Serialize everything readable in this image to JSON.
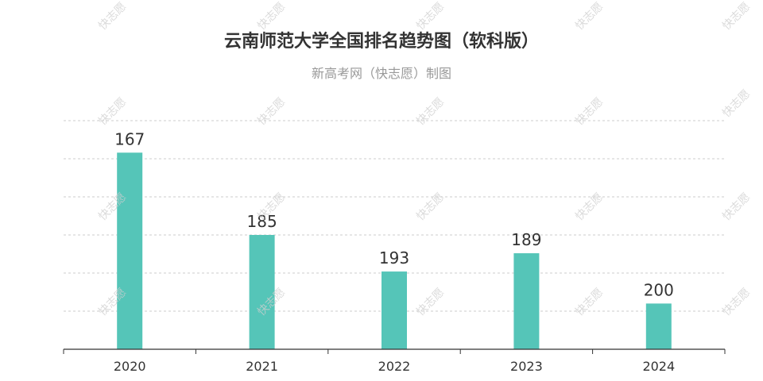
{
  "title": "云南师范大学全国排名趋势图（软科版）",
  "subtitle": "新高考网（快志愿）制图",
  "watermark": "快志愿",
  "colors": {
    "bar": "#55c5b8",
    "grid": "#cccccc",
    "axis": "#333333",
    "label": "#333333"
  },
  "chart_data": {
    "type": "bar",
    "categories": [
      "2020",
      "2021",
      "2022",
      "2023",
      "2024"
    ],
    "values": [
      167,
      185,
      193,
      189,
      200
    ],
    "value_labels": [
      "167",
      "185",
      "193",
      "189",
      "200"
    ],
    "xlabel": "",
    "ylabel": "",
    "ylim": [
      210,
      160
    ],
    "y_inverted": true,
    "grid": true,
    "legend": "none"
  }
}
